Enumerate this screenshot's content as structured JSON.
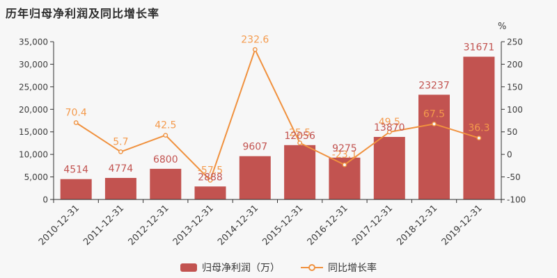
{
  "chart_data": {
    "type": "combo-bar-line",
    "title": "历年归母净利润及同比增长率",
    "categories": [
      "2010-12-31",
      "2011-12-31",
      "2012-12-31",
      "2013-12-31",
      "2014-12-31",
      "2015-12-31",
      "2016-12-31",
      "2017-12-31",
      "2018-12-31",
      "2019-12-31"
    ],
    "series": [
      {
        "name": "归母净利润（万）",
        "type": "bar",
        "axis": "left",
        "color": "#c25350",
        "values": [
          4514,
          4774,
          6800,
          2888,
          9607,
          12056,
          9275,
          13870,
          23237,
          31671
        ]
      },
      {
        "name": "同比增长率",
        "type": "line",
        "axis": "right",
        "color": "#f0913e",
        "label_color": "#f49a4c",
        "marker": "open-circle",
        "values": [
          70.4,
          5.7,
          42.5,
          -57.5,
          232.6,
          25.5,
          -23.1,
          49.5,
          67.5,
          36.3
        ]
      }
    ],
    "left_axis": {
      "min": 0,
      "max": 35000,
      "step": 5000,
      "tick_labels": [
        "0",
        "5,000",
        "10,000",
        "15,000",
        "20,000",
        "25,000",
        "30,000",
        "35,000"
      ]
    },
    "right_axis": {
      "min": -100,
      "max": 250,
      "step": 50,
      "unit": "%",
      "tick_labels": [
        "-100",
        "-50",
        "0",
        "50",
        "100",
        "150",
        "200",
        "250"
      ]
    },
    "legend_position": "bottom-center",
    "grid": false,
    "background": "#f7f7f7",
    "axis_text_color": "#3c3c3c"
  }
}
